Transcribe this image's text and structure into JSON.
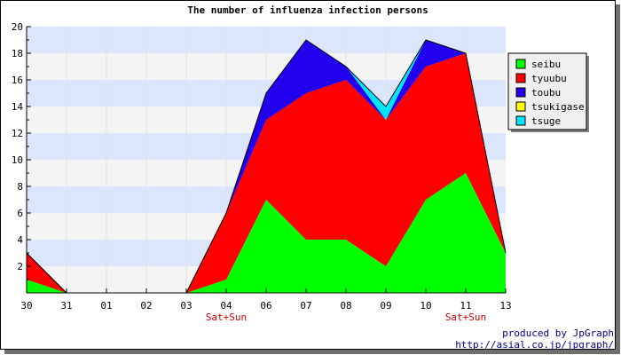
{
  "chart_data": {
    "type": "area",
    "stacked": true,
    "title": "The number of influenza infection persons",
    "categories": [
      "30",
      "31",
      "01",
      "02",
      "03",
      "04",
      "06",
      "07",
      "08",
      "09",
      "10",
      "11",
      "13"
    ],
    "x_sublabels": [
      "",
      "",
      "",
      "",
      "",
      "Sat+Sun",
      "",
      "",
      "",
      "",
      "",
      "Sat+Sun",
      ""
    ],
    "ylim": [
      0,
      20
    ],
    "yticks": [
      2,
      4,
      6,
      8,
      10,
      12,
      14,
      16,
      18,
      20
    ],
    "grid": true,
    "legend_position": "right",
    "series": [
      {
        "name": "seibu",
        "color": "#00ff00",
        "values": [
          1,
          0,
          0,
          0,
          0,
          1,
          7,
          4,
          4,
          2,
          7,
          9,
          3
        ]
      },
      {
        "name": "tyuubu",
        "color": "#ff0000",
        "values": [
          2,
          0,
          0,
          0,
          0,
          5,
          6,
          11,
          12,
          11,
          10,
          9,
          0
        ]
      },
      {
        "name": "toubu",
        "color": "#2200ee",
        "values": [
          0,
          0,
          0,
          0,
          0,
          0,
          2,
          4,
          1,
          0,
          2,
          0,
          0
        ]
      },
      {
        "name": "tsukigase",
        "color": "#ffff00",
        "values": [
          0,
          0,
          0,
          0,
          0,
          0,
          0,
          0,
          0,
          0,
          0,
          0,
          0
        ]
      },
      {
        "name": "tsuge",
        "color": "#00e5ff",
        "values": [
          0,
          0,
          0,
          0,
          0,
          0,
          0,
          0,
          0,
          1,
          0,
          0,
          0
        ]
      }
    ]
  },
  "credit": {
    "line1": "produced by JpGraph",
    "line2": "http://asial.co.jp/jpgraph/"
  }
}
